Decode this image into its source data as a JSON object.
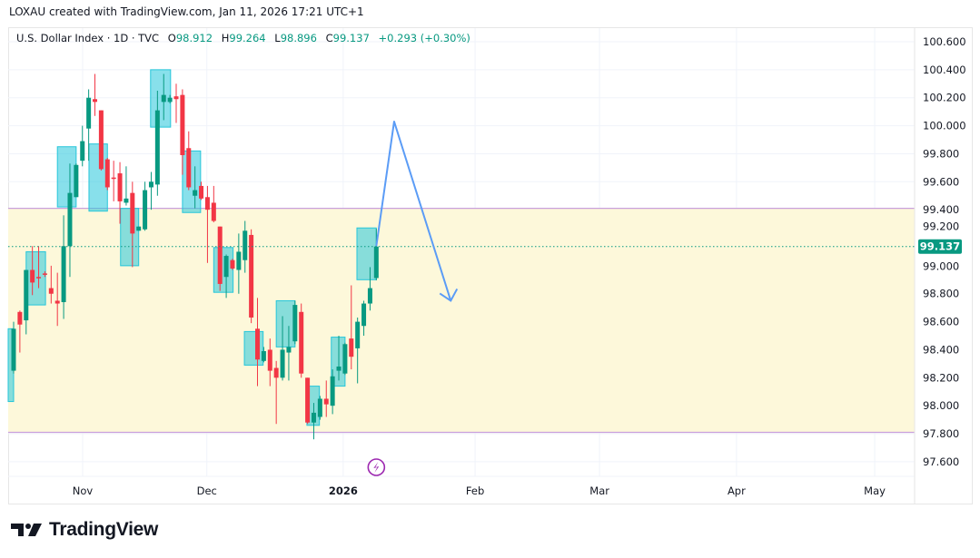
{
  "credit": "LOXAU created with TradingView.com, Jan 11, 2026 17:21 UTC+1",
  "legend": {
    "symbol": "U.S. Dollar Index · 1D · TVC",
    "open_label": "O",
    "open": "98.912",
    "high_label": "H",
    "high": "99.264",
    "low_label": "L",
    "low": "98.896",
    "close_label": "C",
    "close": "99.137",
    "change": "+0.293 (+0.30%)"
  },
  "footer": {
    "brand": "TradingView"
  },
  "colors": {
    "up": "#089981",
    "down": "#f23645",
    "zone": "#fdf8da",
    "zone_border": "#c9a0dc",
    "box": "#26c6da",
    "arrow": "#5b9cf6",
    "event": "#9c27b0"
  },
  "chart_data": {
    "type": "candlestick",
    "title": "U.S. Dollar Index · 1D · TVC",
    "ylim": [
      97.6,
      100.6
    ],
    "y_ticks": [
      "100.600",
      "100.400",
      "100.200",
      "100.000",
      "99.800",
      "99.600",
      "99.400",
      "99.200",
      "99.000",
      "98.800",
      "98.600",
      "98.400",
      "98.200",
      "98.000",
      "97.800",
      "97.600"
    ],
    "x_ticks": [
      {
        "label": "Nov",
        "bar": 11.04
      },
      {
        "label": "Dec",
        "bar": 30.9
      },
      {
        "label": "2026",
        "bar": 52.7,
        "bold": true
      },
      {
        "label": "Feb",
        "bar": 73.8
      },
      {
        "label": "Mar",
        "bar": 93.7
      },
      {
        "label": "Apr",
        "bar": 115.6
      },
      {
        "label": "May",
        "bar": 137.7
      }
    ],
    "last_price": "99.137",
    "ohlc": [
      [
        98.25,
        98.6,
        98.23,
        98.55
      ],
      [
        98.67,
        98.68,
        98.38,
        98.58
      ],
      [
        98.61,
        98.97,
        98.51,
        98.97
      ],
      [
        98.97,
        99.14,
        98.79,
        98.88
      ],
      [
        98.92,
        99.14,
        98.84,
        98.91
      ],
      [
        98.945,
        98.96,
        98.92,
        98.935
      ],
      [
        98.84,
        99.0,
        98.73,
        98.8
      ],
      [
        98.75,
        98.95,
        98.57,
        98.73
      ],
      [
        98.74,
        99.36,
        98.62,
        99.14
      ],
      [
        99.14,
        99.73,
        98.92,
        99.52
      ],
      [
        99.49,
        99.73,
        99.49,
        99.72
      ],
      [
        99.75,
        100.0,
        99.71,
        99.89
      ],
      [
        99.98,
        100.26,
        99.75,
        100.2
      ],
      [
        100.19,
        100.37,
        100.07,
        100.17
      ],
      [
        100.11,
        100.11,
        99.68,
        99.69
      ],
      [
        99.76,
        99.77,
        99.54,
        99.56
      ],
      [
        99.63,
        99.75,
        99.46,
        99.62
      ],
      [
        99.66,
        99.74,
        99.3,
        99.46
      ],
      [
        99.45,
        99.71,
        99.43,
        99.48
      ],
      [
        99.52,
        99.6,
        98.99,
        99.23
      ],
      [
        99.25,
        99.28,
        99.25,
        99.28
      ],
      [
        99.26,
        99.6,
        99.25,
        99.54
      ],
      [
        99.56,
        99.67,
        99.4,
        99.6
      ],
      [
        99.58,
        100.25,
        99.5,
        100.11
      ],
      [
        100.17,
        100.37,
        100.04,
        100.22
      ],
      [
        100.17,
        100.22,
        100.16,
        100.2
      ],
      [
        100.21,
        100.3,
        100.02,
        100.19
      ],
      [
        100.22,
        100.26,
        99.65,
        99.79
      ],
      [
        99.84,
        99.96,
        99.54,
        99.56
      ],
      [
        99.5,
        99.71,
        99.41,
        99.54
      ],
      [
        99.57,
        99.6,
        99.47,
        99.48
      ],
      [
        99.49,
        99.57,
        99.02,
        99.4
      ],
      [
        99.45,
        99.57,
        99.31,
        99.32
      ],
      [
        99.28,
        99.28,
        98.82,
        98.87
      ],
      [
        98.92,
        99.08,
        98.77,
        99.07
      ],
      [
        99.04,
        99.05,
        98.97,
        98.98
      ],
      [
        98.97,
        99.23,
        98.8,
        99.1
      ],
      [
        99.04,
        99.32,
        98.95,
        99.25
      ],
      [
        99.22,
        99.26,
        98.59,
        98.63
      ],
      [
        98.55,
        98.77,
        98.14,
        98.33
      ],
      [
        98.32,
        98.42,
        98.31,
        98.39
      ],
      [
        98.4,
        98.48,
        98.14,
        98.25
      ],
      [
        98.27,
        98.32,
        97.87,
        98.2
      ],
      [
        98.2,
        98.64,
        98.18,
        98.4
      ],
      [
        98.38,
        98.57,
        98.18,
        98.42
      ],
      [
        98.46,
        98.75,
        98.44,
        98.72
      ],
      [
        98.67,
        98.73,
        98.2,
        98.23
      ],
      [
        98.2,
        98.2,
        97.87,
        97.88
      ],
      [
        97.88,
        98.02,
        97.76,
        97.95
      ],
      [
        97.92,
        98.07,
        97.9,
        98.05
      ],
      [
        98.05,
        98.18,
        97.92,
        98.01
      ],
      [
        98.0,
        98.26,
        97.94,
        98.21
      ],
      [
        98.25,
        98.5,
        98.18,
        98.28
      ],
      [
        98.23,
        98.45,
        98.22,
        98.44
      ],
      [
        98.48,
        98.86,
        98.26,
        98.35
      ],
      [
        98.41,
        98.63,
        98.16,
        98.6
      ],
      [
        98.57,
        98.75,
        98.5,
        98.73
      ],
      [
        98.73,
        98.99,
        98.68,
        98.84
      ],
      [
        98.912,
        99.264,
        98.896,
        99.137
      ]
    ],
    "zone": {
      "top": 99.41,
      "bottom": 97.81
    },
    "boxes": [
      {
        "from": -0.9,
        "to": 0,
        "top": 98.55,
        "bottom": 98.03
      },
      {
        "from": 2.0,
        "to": 5.1,
        "top": 99.1,
        "bottom": 98.72
      },
      {
        "from": 7.0,
        "to": 10.0,
        "top": 99.85,
        "bottom": 99.42
      },
      {
        "from": 12.05,
        "to": 15.0,
        "top": 99.87,
        "bottom": 99.39
      },
      {
        "from": 17.1,
        "to": 20.0,
        "top": 99.41,
        "bottom": 99.0
      },
      {
        "from": 21.9,
        "to": 25.1,
        "top": 100.4,
        "bottom": 99.99
      },
      {
        "from": 27.0,
        "to": 29.9,
        "top": 99.82,
        "bottom": 99.38
      },
      {
        "from": 32.0,
        "to": 35.1,
        "top": 99.13,
        "bottom": 98.81
      },
      {
        "from": 36.9,
        "to": 39.9,
        "top": 98.53,
        "bottom": 98.29
      },
      {
        "from": 42.0,
        "to": 45.0,
        "top": 98.75,
        "bottom": 98.42
      },
      {
        "from": 46.9,
        "to": 48.9,
        "top": 98.14,
        "bottom": 97.86
      },
      {
        "from": 50.8,
        "to": 53.0,
        "top": 98.49,
        "bottom": 98.14
      },
      {
        "from": 54.9,
        "to": 58.0,
        "top": 99.27,
        "bottom": 98.9
      }
    ],
    "projection_path": [
      {
        "bar": 58,
        "price": 99.14
      },
      {
        "bar": 60.85,
        "price": 100.03
      },
      {
        "bar": 69.9,
        "price": 98.75
      }
    ],
    "event_marker_bar": 58
  }
}
